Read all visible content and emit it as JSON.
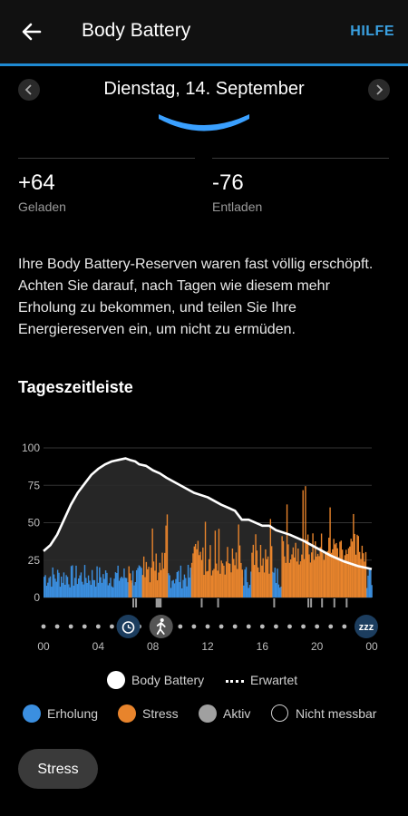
{
  "header": {
    "title": "Body Battery",
    "help_label": "HILFE"
  },
  "date_nav": {
    "date": "Dienstag, 14. September"
  },
  "metrics": [
    {
      "value": "+64",
      "label": "Geladen"
    },
    {
      "value": "-76",
      "label": "Entladen"
    }
  ],
  "description": "Ihre Body Battery-Reserven waren fast völlig erschöpft. Achten Sie darauf, nach Tagen wie diesem mehr Erholung zu bekommen, und teilen Sie Ihre Energiereserven ein, um nicht zu ermüden.",
  "section_title": "Tageszeitleiste",
  "colors": {
    "accent": "#1f8ad2",
    "rest": "#3b8fe0",
    "stress": "#e8842c",
    "active": "#9a9a9a",
    "battery_line": "#ffffff"
  },
  "chart_data": {
    "type": "line",
    "y_ticks": [
      "100",
      "75",
      "50",
      "25",
      "0"
    ],
    "ylim": [
      0,
      100
    ],
    "x_ticks": [
      "00",
      "04",
      "08",
      "12",
      "16",
      "20",
      "00"
    ],
    "x_range_hours": [
      0,
      24
    ],
    "battery": {
      "name": "Body Battery",
      "x": [
        0,
        0.5,
        1,
        1.5,
        2,
        2.5,
        3,
        3.5,
        4,
        4.5,
        5,
        5.5,
        6,
        6.3,
        6.7,
        7,
        7.5,
        8,
        8.5,
        9,
        10,
        11,
        12,
        13,
        14,
        14.5,
        15,
        16,
        16.5,
        17,
        18,
        19,
        20,
        21,
        22,
        23,
        24
      ],
      "y": [
        31,
        35,
        42,
        52,
        62,
        70,
        76,
        82,
        86,
        89,
        91,
        92,
        93,
        92,
        91,
        89,
        88,
        85,
        83,
        80,
        75,
        70,
        67,
        62,
        58,
        52,
        52,
        48,
        48,
        45,
        42,
        38,
        33,
        28,
        24,
        21,
        19
      ]
    },
    "bars": [
      {
        "name": "Erholung",
        "ranges": [
          [
            0,
            6.2
          ],
          [
            6.4,
            7.2
          ],
          [
            9,
            10.8
          ],
          [
            14.5,
            15.2
          ],
          [
            16.7,
            17.4
          ],
          [
            23.6,
            24
          ]
        ]
      },
      {
        "name": "Stress",
        "ranges": [
          [
            6.2,
            6.4
          ],
          [
            7.2,
            9
          ],
          [
            10.8,
            14.5
          ],
          [
            15.2,
            16.7
          ],
          [
            17.4,
            23.6
          ]
        ]
      }
    ],
    "legend_row1": [
      {
        "label": "Body Battery"
      },
      {
        "label": "Erwartet"
      }
    ],
    "legend_row2": [
      {
        "label": "Erholung"
      },
      {
        "label": "Stress"
      },
      {
        "label": "Aktiv"
      },
      {
        "label": "Nicht messbar"
      }
    ],
    "timeline_icons": [
      {
        "icon": "alarm-clock-icon",
        "hour": 6.2
      },
      {
        "icon": "walking-icon",
        "hour": 8.6
      },
      {
        "icon": "sleep-zzz-icon",
        "hour": 23.6
      }
    ]
  },
  "stress_button": {
    "label": "Stress"
  }
}
